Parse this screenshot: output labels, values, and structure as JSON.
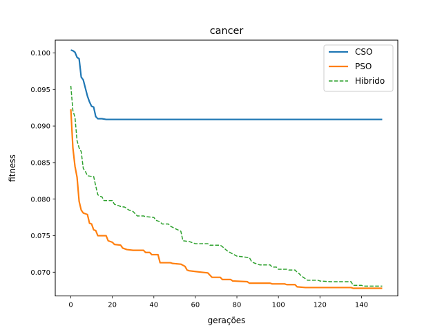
{
  "chart_data": {
    "type": "line",
    "title": "cancer",
    "xlabel": "gerações",
    "ylabel": "fitness",
    "xlim": [
      -7.5,
      157.5
    ],
    "ylim": [
      0.06675,
      0.10175
    ],
    "xticks": [
      0,
      20,
      40,
      60,
      80,
      100,
      120,
      140
    ],
    "xtick_labels": [
      "0",
      "20",
      "40",
      "60",
      "80",
      "100",
      "120",
      "140"
    ],
    "yticks": [
      0.07,
      0.075,
      0.08,
      0.085,
      0.09,
      0.095,
      0.1
    ],
    "ytick_labels": [
      "0.070",
      "0.075",
      "0.080",
      "0.085",
      "0.090",
      "0.095",
      "0.100"
    ],
    "grid": false,
    "legend_position": "top-right",
    "series": [
      {
        "name": "CSO",
        "color": "#1f77b4",
        "style": "solid",
        "points": [
          [
            0,
            0.1004
          ],
          [
            1,
            0.1003
          ],
          [
            2,
            0.1001
          ],
          [
            3,
            0.0994
          ],
          [
            4,
            0.0992
          ],
          [
            5,
            0.0967
          ],
          [
            6,
            0.0963
          ],
          [
            7,
            0.0952
          ],
          [
            8,
            0.0941
          ],
          [
            9,
            0.0933
          ],
          [
            10,
            0.0927
          ],
          [
            11,
            0.0926
          ],
          [
            12,
            0.0913
          ],
          [
            13,
            0.091
          ],
          [
            15,
            0.091
          ],
          [
            17,
            0.0909
          ],
          [
            150,
            0.0909
          ]
        ]
      },
      {
        "name": "PSO",
        "color": "#ff7f0e",
        "style": "solid",
        "points": [
          [
            0,
            0.0923
          ],
          [
            1,
            0.087
          ],
          [
            2,
            0.0845
          ],
          [
            3,
            0.083
          ],
          [
            4,
            0.0797
          ],
          [
            5,
            0.0785
          ],
          [
            6,
            0.0781
          ],
          [
            8,
            0.0779
          ],
          [
            9,
            0.0767
          ],
          [
            10,
            0.0766
          ],
          [
            11,
            0.0758
          ],
          [
            12,
            0.0757
          ],
          [
            13,
            0.075
          ],
          [
            17,
            0.075
          ],
          [
            18,
            0.0743
          ],
          [
            20,
            0.0741
          ],
          [
            21,
            0.0738
          ],
          [
            24,
            0.0737
          ],
          [
            25,
            0.0733
          ],
          [
            27,
            0.0731
          ],
          [
            30,
            0.073
          ],
          [
            35,
            0.073
          ],
          [
            36,
            0.0727
          ],
          [
            38,
            0.0727
          ],
          [
            39,
            0.0724
          ],
          [
            42,
            0.0724
          ],
          [
            43,
            0.0713
          ],
          [
            48,
            0.0713
          ],
          [
            49,
            0.0712
          ],
          [
            53,
            0.0711
          ],
          [
            55,
            0.0708
          ],
          [
            56,
            0.0703
          ],
          [
            57,
            0.0702
          ],
          [
            60,
            0.0701
          ],
          [
            63,
            0.07
          ],
          [
            66,
            0.0699
          ],
          [
            68,
            0.0693
          ],
          [
            72,
            0.0693
          ],
          [
            73,
            0.069
          ],
          [
            77,
            0.069
          ],
          [
            78,
            0.0688
          ],
          [
            85,
            0.0687
          ],
          [
            86,
            0.0685
          ],
          [
            96,
            0.0685
          ],
          [
            97,
            0.0684
          ],
          [
            103,
            0.0684
          ],
          [
            104,
            0.0683
          ],
          [
            108,
            0.0683
          ],
          [
            109,
            0.068
          ],
          [
            113,
            0.0679
          ],
          [
            135,
            0.0679
          ],
          [
            136,
            0.0678
          ],
          [
            150,
            0.0678
          ]
        ]
      },
      {
        "name": "Hibrido",
        "color": "#2ca02c",
        "style": "dashed",
        "points": [
          [
            0,
            0.0955
          ],
          [
            1,
            0.0921
          ],
          [
            2,
            0.0912
          ],
          [
            3,
            0.088
          ],
          [
            4,
            0.087
          ],
          [
            5,
            0.0865
          ],
          [
            6,
            0.0842
          ],
          [
            7,
            0.0838
          ],
          [
            8,
            0.0832
          ],
          [
            10,
            0.0831
          ],
          [
            11,
            0.0831
          ],
          [
            12,
            0.0818
          ],
          [
            13,
            0.0806
          ],
          [
            14,
            0.0804
          ],
          [
            15,
            0.0803
          ],
          [
            16,
            0.0798
          ],
          [
            20,
            0.0798
          ],
          [
            21,
            0.0793
          ],
          [
            24,
            0.079
          ],
          [
            26,
            0.0789
          ],
          [
            28,
            0.0785
          ],
          [
            30,
            0.0783
          ],
          [
            32,
            0.0777
          ],
          [
            35,
            0.0777
          ],
          [
            36,
            0.0776
          ],
          [
            40,
            0.0775
          ],
          [
            41,
            0.0771
          ],
          [
            43,
            0.0769
          ],
          [
            44,
            0.0766
          ],
          [
            47,
            0.0766
          ],
          [
            48,
            0.0763
          ],
          [
            50,
            0.076
          ],
          [
            53,
            0.0756
          ],
          [
            54,
            0.0743
          ],
          [
            57,
            0.0742
          ],
          [
            60,
            0.0739
          ],
          [
            66,
            0.0739
          ],
          [
            67,
            0.0737
          ],
          [
            72,
            0.0737
          ],
          [
            73,
            0.0735
          ],
          [
            75,
            0.073
          ],
          [
            76,
            0.0728
          ],
          [
            78,
            0.0725
          ],
          [
            80,
            0.0722
          ],
          [
            86,
            0.072
          ],
          [
            87,
            0.0715
          ],
          [
            88,
            0.0713
          ],
          [
            91,
            0.071
          ],
          [
            96,
            0.071
          ],
          [
            97,
            0.0707
          ],
          [
            99,
            0.0707
          ],
          [
            100,
            0.0704
          ],
          [
            104,
            0.0704
          ],
          [
            105,
            0.0703
          ],
          [
            108,
            0.0703
          ],
          [
            109,
            0.07
          ],
          [
            110,
            0.0698
          ],
          [
            111,
            0.0695
          ],
          [
            112,
            0.0693
          ],
          [
            113,
            0.0691
          ],
          [
            114,
            0.0689
          ],
          [
            119,
            0.0689
          ],
          [
            120,
            0.0688
          ],
          [
            125,
            0.0687
          ],
          [
            135,
            0.0687
          ],
          [
            136,
            0.0682
          ],
          [
            140,
            0.0682
          ],
          [
            141,
            0.0681
          ],
          [
            150,
            0.0681
          ]
        ]
      }
    ]
  }
}
